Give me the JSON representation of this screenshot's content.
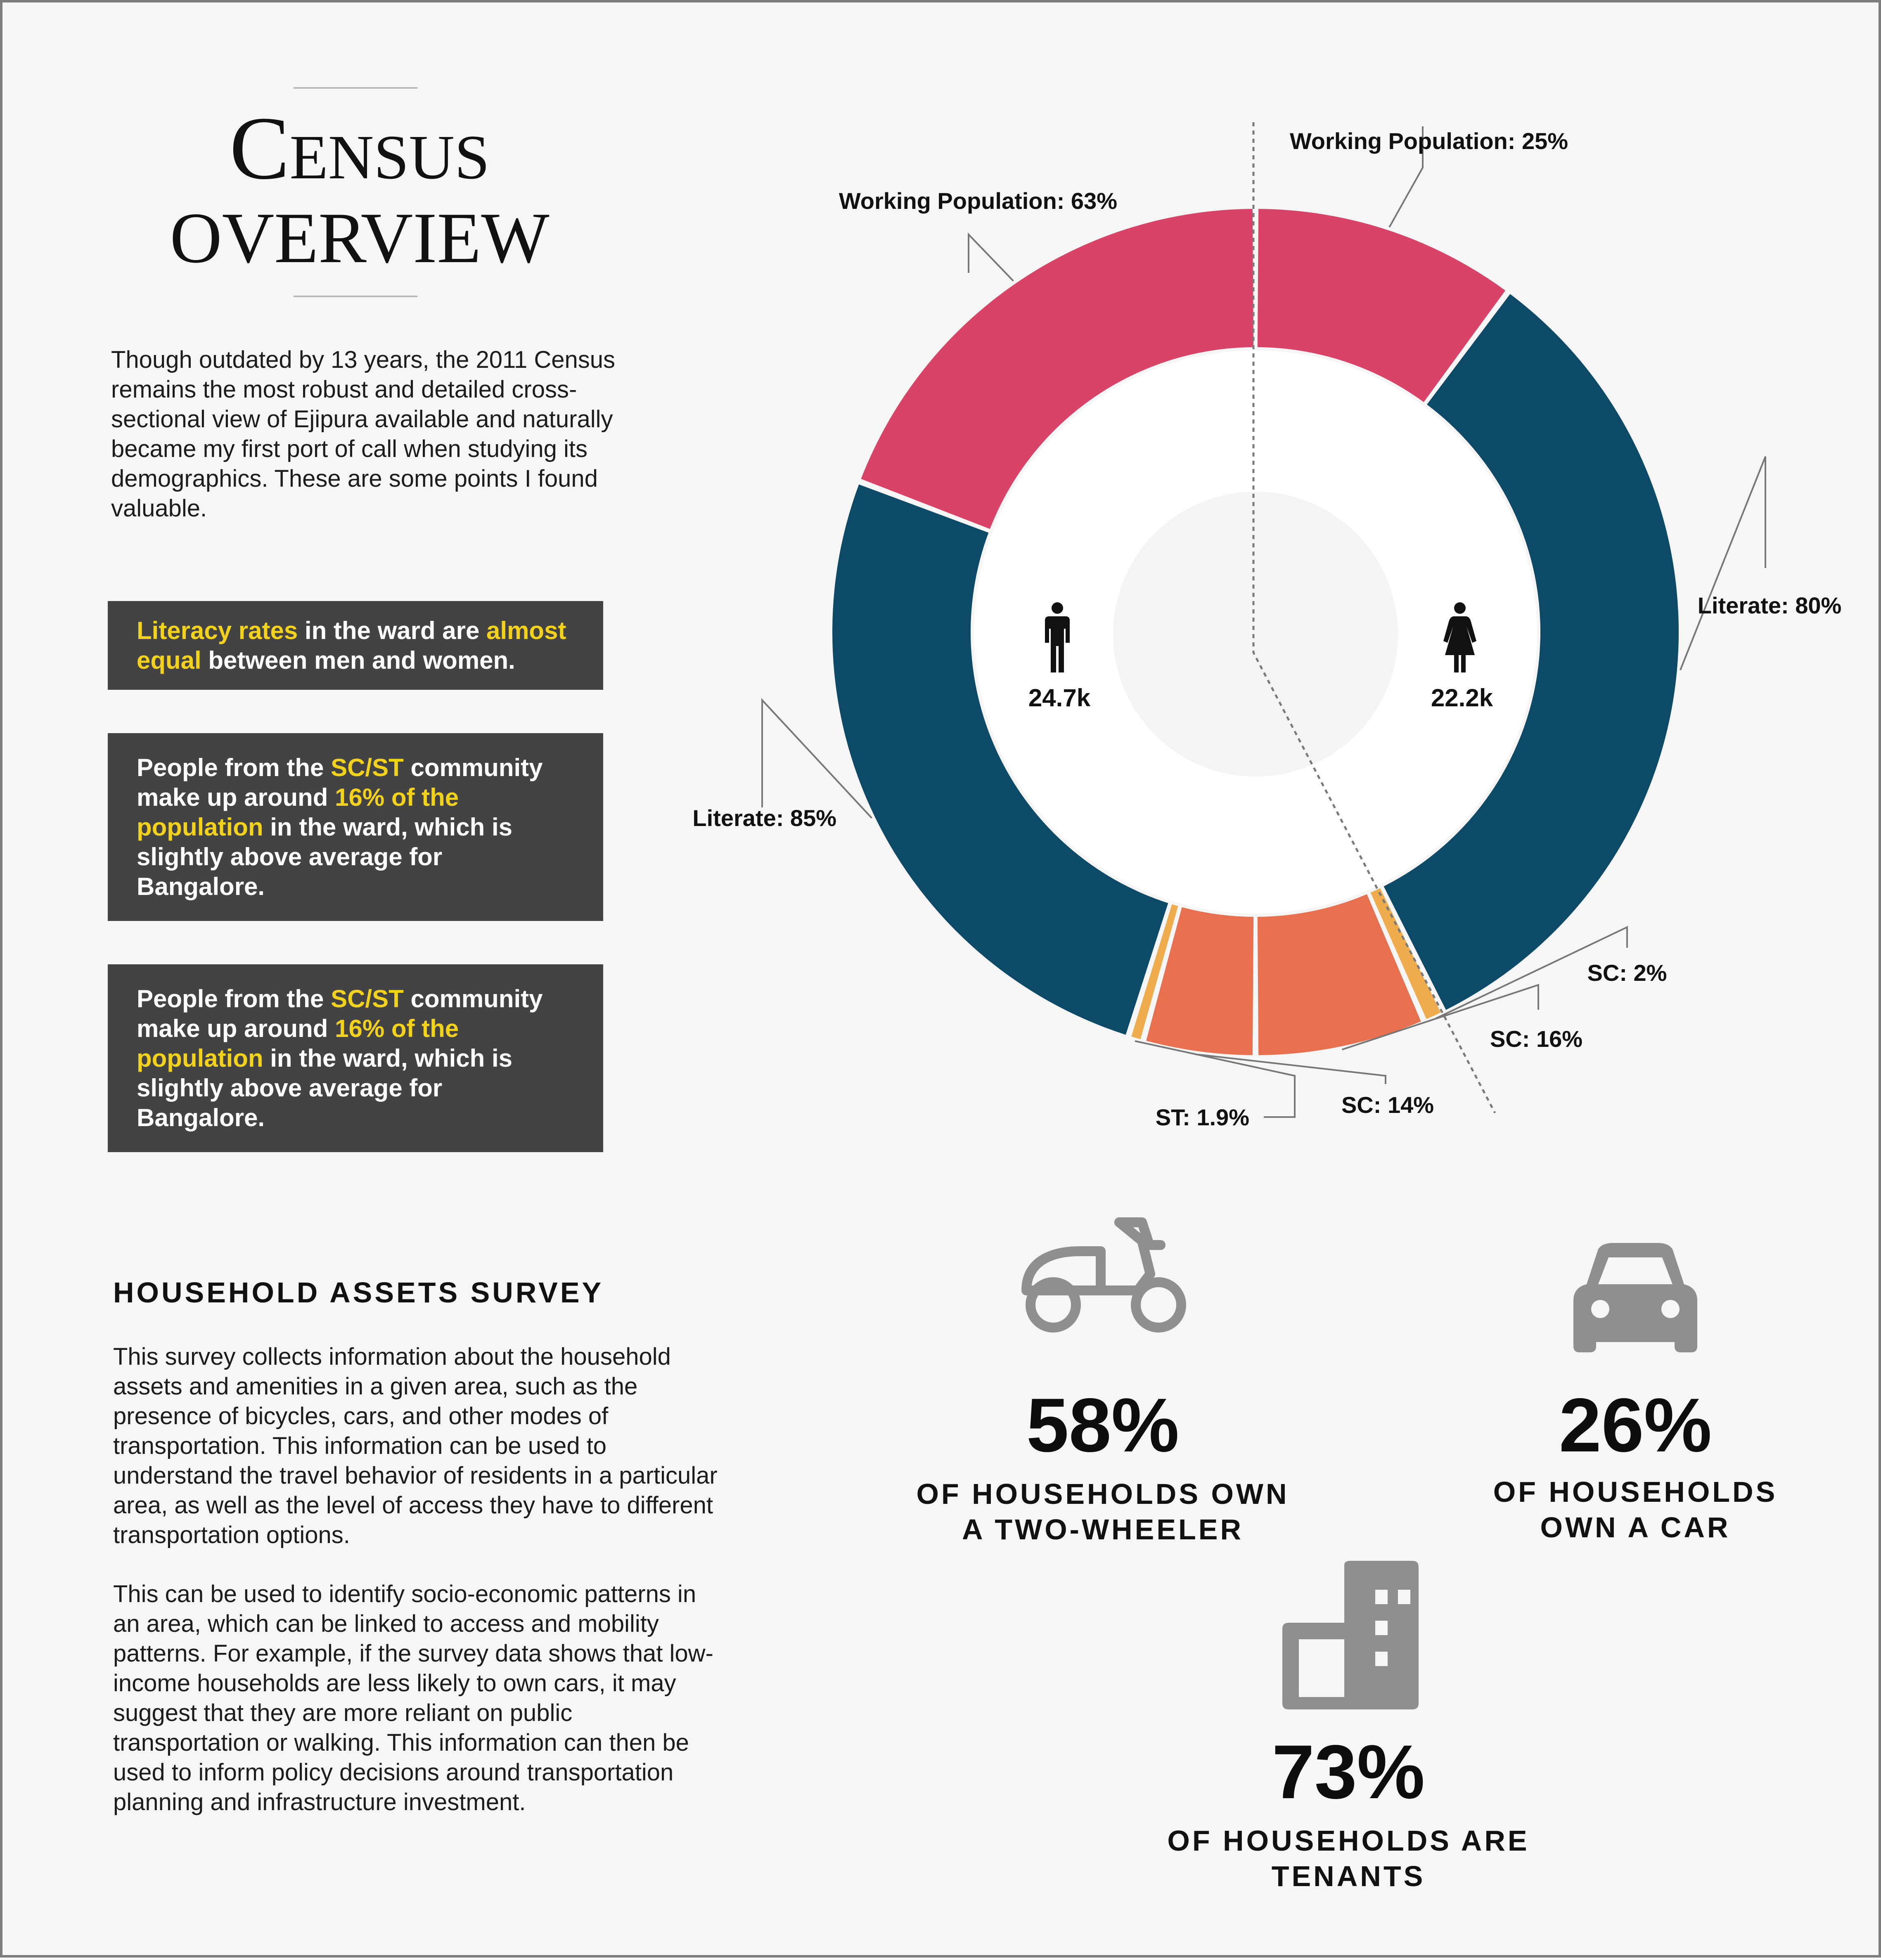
{
  "header": {
    "title_line1": "Census",
    "title_line2": "OVERVIEW"
  },
  "intro": "Though outdated by 13 years, the 2011 Census remains the most robust and detailed cross-sectional view of Ejipura available and naturally became my first port of call when studying its demographics. These are some points I found valuable.",
  "callouts": [
    {
      "parts": [
        {
          "text": "Literacy rates",
          "hl": true
        },
        {
          "text": " in the ward are ",
          "hl": false
        },
        {
          "text": "almost equal",
          "hl": true
        },
        {
          "text": " between men and women.",
          "hl": false
        }
      ]
    },
    {
      "parts": [
        {
          "text": "People from the ",
          "hl": false
        },
        {
          "text": "SC/ST",
          "hl": true
        },
        {
          "text": " community make up around ",
          "hl": false
        },
        {
          "text": "16% of the population",
          "hl": true
        },
        {
          "text": " in the ward, which is slightly above average for Bangalore.",
          "hl": false
        }
      ]
    },
    {
      "parts": [
        {
          "text": "People from the ",
          "hl": false
        },
        {
          "text": "SC/ST",
          "hl": true
        },
        {
          "text": " community make up around ",
          "hl": false
        },
        {
          "text": "16% of the population",
          "hl": true
        },
        {
          "text": " in the ward, which is slightly above average for Bangalore.",
          "hl": false
        }
      ]
    }
  ],
  "chart_data": {
    "type": "pie",
    "variant": "split donut (men left, women right)",
    "groups": [
      {
        "side": "left",
        "icon": "man-icon",
        "count_label": "24.7k",
        "segments": [
          {
            "label": "Working Population: 63%",
            "value": 63,
            "color": "#d94368"
          },
          {
            "label": "Literate: 85%",
            "value": 85,
            "color": "#0c4a68"
          },
          {
            "label": "ST: 1.9%",
            "value": 1.9,
            "color": "#efac4c"
          },
          {
            "label": "SC: 14%",
            "value": 14,
            "color": "#e8704f"
          }
        ]
      },
      {
        "side": "right",
        "icon": "woman-icon",
        "count_label": "22.2k",
        "segments": [
          {
            "label": "Working Population: 25%",
            "value": 25,
            "color": "#d94368"
          },
          {
            "label": "Literate: 80%",
            "value": 80,
            "color": "#0c4a68"
          },
          {
            "label": "SC: 2%",
            "value": 2,
            "color": "#efac4c"
          },
          {
            "label": "SC: 16%",
            "value": 16,
            "color": "#e8704f"
          }
        ]
      }
    ]
  },
  "assets": {
    "title": "HOUSEHOLD ASSETS SURVEY",
    "para1": "This survey collects information about the household assets and amenities in a given area, such as the presence of bicycles, cars, and other modes of transportation. This information can be used to understand the travel behavior of residents in a particular area, as well as the level of access they have to different transportation options.",
    "para2": "This can be used to identify socio-economic patterns in an area, which can be linked to access and mobility patterns. For example, if the survey data shows that low-income households are less likely to own cars, it may suggest that they are more reliant on public transportation or walking. This information can then be used to inform policy decisions around transportation planning and infrastructure investment.",
    "stats": [
      {
        "value": "58%",
        "caption_line1": "OF HOUSEHOLDS OWN",
        "caption_line2": "A TWO-WHEELER",
        "icon": "scooter-icon"
      },
      {
        "value": "26%",
        "caption_line1": "OF HOUSEHOLDS",
        "caption_line2": "OWN A CAR",
        "icon": "car-icon"
      },
      {
        "value": "73%",
        "caption_line1": "OF HOUSEHOLDS ARE",
        "caption_line2": "TENANTS",
        "icon": "building-icon"
      }
    ],
    "icon_color": "#8f8f8f"
  }
}
